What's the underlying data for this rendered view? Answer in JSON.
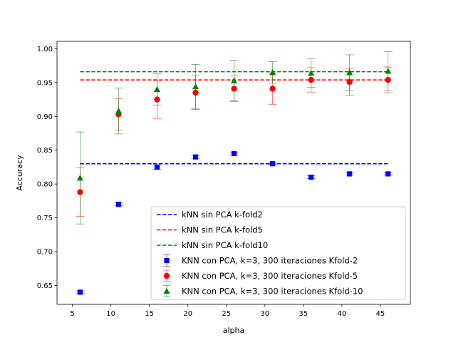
{
  "chart_data": {
    "type": "scatter",
    "title": "",
    "xlabel": "alpha",
    "ylabel": "Accuracy",
    "xlim": [
      3.0,
      48.9
    ],
    "ylim": [
      0.622,
      1.011
    ],
    "xticks": [
      5,
      10,
      15,
      20,
      25,
      30,
      35,
      40,
      45
    ],
    "yticks": [
      0.65,
      0.7,
      0.75,
      0.8,
      0.85,
      0.9,
      0.95,
      1.0
    ],
    "ytick_labels": [
      "0.65",
      "0.70",
      "0.75",
      "0.80",
      "0.85",
      "0.90",
      "0.95",
      "1.00"
    ],
    "grid": false,
    "legend_position": "lower-right",
    "reference_lines": [
      {
        "name": "kNN sin PCA k-fold2",
        "color": "#0000ff",
        "y": 0.83,
        "x_range": [
          6,
          46
        ]
      },
      {
        "name": "kNN sin PCA k-fold5",
        "color": "#ff0000",
        "y": 0.954,
        "x_range": [
          6,
          46
        ]
      },
      {
        "name": "kNN sin PCA k-fold10",
        "color": "#008000",
        "y": 0.966,
        "x_range": [
          6,
          46
        ]
      }
    ],
    "series": [
      {
        "name": "KNN con PCA, k=3, 300 iteraciones Kfold-2",
        "color": "#0000ff",
        "marker": "square",
        "x": [
          6,
          11,
          16,
          21,
          26,
          31,
          36,
          41,
          46
        ],
        "y": [
          0.64,
          0.77,
          0.825,
          0.84,
          0.845,
          0.83,
          0.81,
          0.815,
          0.815
        ],
        "err": [
          0.002,
          0.002,
          0.003,
          0.002,
          0.002,
          0.001,
          0.002,
          0.002,
          0.002
        ]
      },
      {
        "name": "KNN con PCA, k=3, 300 iteraciones Kfold-5",
        "color": "#ff0000",
        "marker": "circle",
        "x": [
          6,
          11,
          16,
          21,
          26,
          31,
          36,
          41,
          46
        ],
        "y": [
          0.788,
          0.903,
          0.925,
          0.935,
          0.941,
          0.941,
          0.954,
          0.951,
          0.954
        ],
        "err": [
          0.036,
          0.023,
          0.028,
          0.025,
          0.019,
          0.023,
          0.018,
          0.02,
          0.019
        ]
      },
      {
        "name": "KNN con PCA, k=3, 300 iteraciones Kfold-10",
        "color": "#008000",
        "marker": "triangle",
        "x": [
          6,
          11,
          16,
          21,
          26,
          31,
          36,
          41,
          46
        ],
        "y": [
          0.809,
          0.908,
          0.94,
          0.944,
          0.953,
          0.965,
          0.964,
          0.965,
          0.967
        ],
        "err": [
          0.068,
          0.034,
          0.023,
          0.033,
          0.03,
          0.016,
          0.021,
          0.026,
          0.029
        ]
      }
    ]
  }
}
